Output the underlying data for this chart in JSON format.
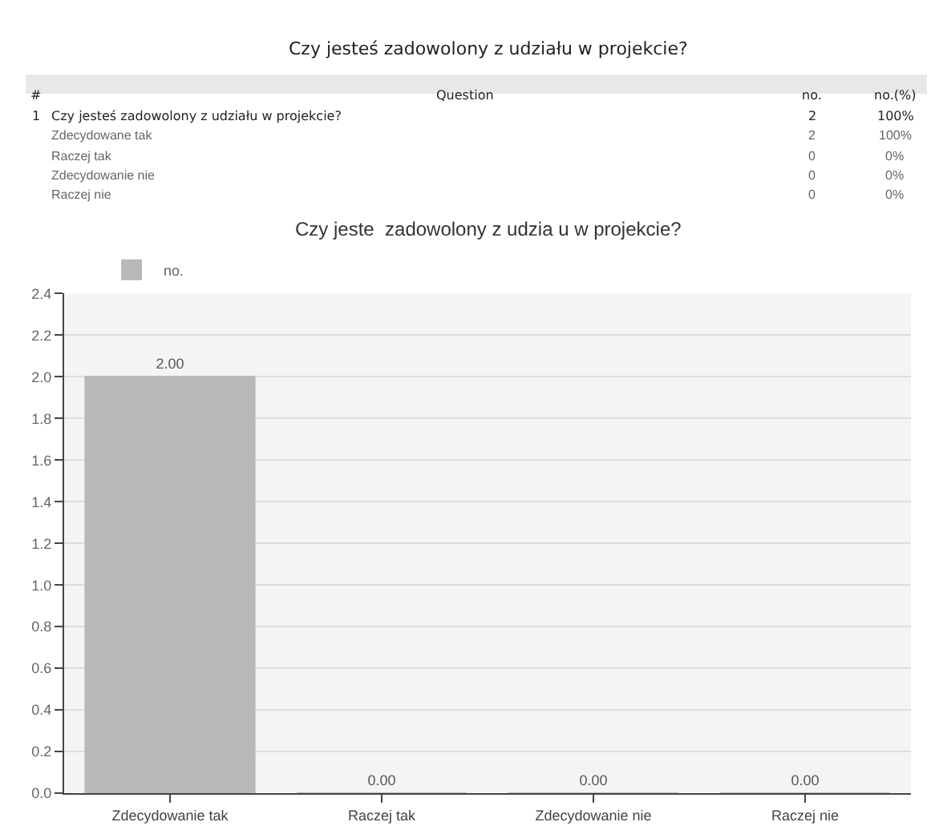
{
  "chart_data": {
    "type": "bar",
    "title": "Czy jesteś zadowolony z udziału w projekcie?",
    "subtitle": "Czy jeste  zadowolony z udzia u w projekcie?",
    "annotations": [
      "#",
      "Question",
      "no.",
      "no.(%)",
      "1",
      "Czy jesteś zadowolony z udziału w projekcie?",
      "2",
      "100%",
      "Zdecydowane tak",
      "2",
      "100%",
      "Raczej tak",
      "0",
      "0%",
      "Zdecydowanie nie",
      "0",
      "0%",
      "Raczej nie",
      "0",
      "0%"
    ],
    "categories": [
      "Zdecydowanie tak",
      "Raczej tak",
      "Zdecydowanie nie",
      "Raczej nie"
    ],
    "series": [
      {
        "name": "no.",
        "color": "#b8b8b8",
        "values": [
          2,
          0,
          0,
          0
        ],
        "value_labels": [
          "2.00",
          "0.00",
          "0.00",
          "0.00"
        ]
      }
    ],
    "ylim": [
      0,
      2.4
    ],
    "yticks": [
      {
        "value": 0,
        "label": "0.0"
      },
      {
        "value": 0.2,
        "label": "0.2"
      },
      {
        "value": 0.4,
        "label": "0.4"
      },
      {
        "value": 0.6,
        "label": "0.6"
      },
      {
        "value": 0.8,
        "label": "0.8"
      },
      {
        "value": 1,
        "label": "1.0"
      },
      {
        "value": 1.2,
        "label": "1.2"
      },
      {
        "value": 1.4,
        "label": "1.4"
      },
      {
        "value": 1.6,
        "label": "1.6"
      },
      {
        "value": 1.8,
        "label": "1.8"
      },
      {
        "value": 2,
        "label": "2.0"
      },
      {
        "value": 2.2,
        "label": "2.2"
      },
      {
        "value": 2.4,
        "label": "2.4"
      }
    ],
    "grid": "y",
    "legend": "top left"
  }
}
